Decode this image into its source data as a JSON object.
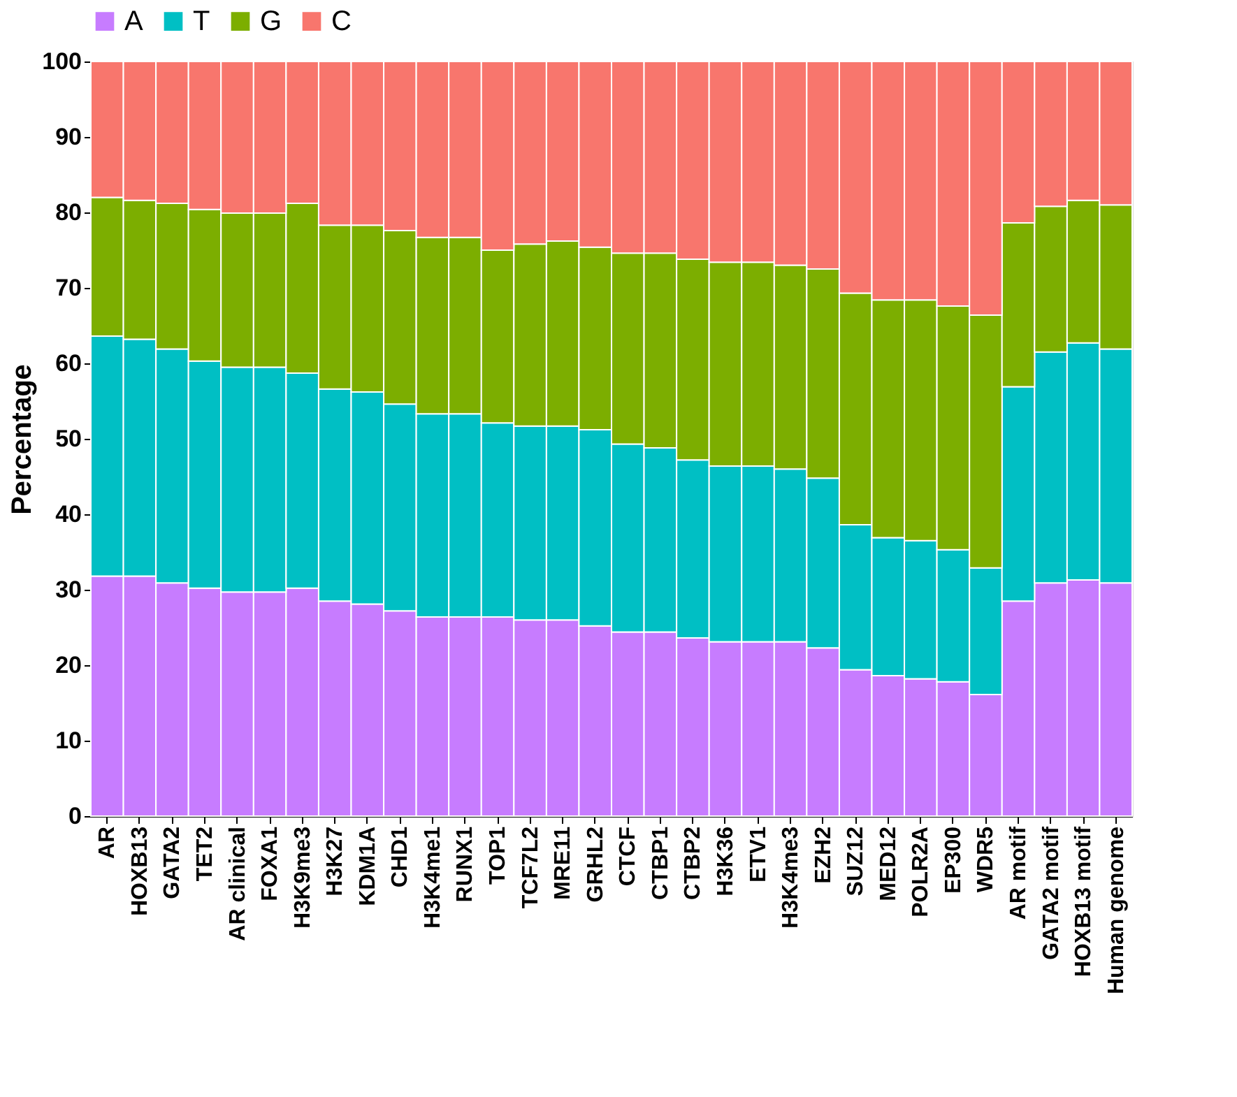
{
  "chart_data": {
    "type": "bar",
    "stacked": true,
    "ylabel": "Percentage",
    "ylim": [
      0,
      100
    ],
    "yticks": [
      0,
      10,
      20,
      30,
      40,
      50,
      60,
      70,
      80,
      90,
      100
    ],
    "legend": "top",
    "categories": [
      "AR",
      "HOXB13",
      "GATA2",
      "TET2",
      "AR clinical",
      "FOXA1",
      "H3K9me3",
      "H3K27",
      "KDM1A",
      "CHD1",
      "H3K4me1",
      "RUNX1",
      "TOP1",
      "TCF7L2",
      "MRE11",
      "GRHL2",
      "CTCF",
      "CTBP1",
      "CTBP2",
      "H3K36",
      "ETV1",
      "H3K4me3",
      "EZH2",
      "SUZ12",
      "MED12",
      "POLR2A",
      "EP300",
      "WDR5",
      "AR motif",
      "GATA2 motif",
      "HOXB13 motif",
      "Human genome"
    ],
    "series": [
      {
        "name": "A",
        "color": "#c77cff",
        "values": [
          31.8,
          31.8,
          30.9,
          30.2,
          29.7,
          29.7,
          30.2,
          28.5,
          28.1,
          27.2,
          26.4,
          26.4,
          26.4,
          26.0,
          26.0,
          25.2,
          24.4,
          24.4,
          23.6,
          23.1,
          23.1,
          23.1,
          22.3,
          19.4,
          18.6,
          18.2,
          17.8,
          16.1,
          28.5,
          30.9,
          31.3,
          30.9
        ]
      },
      {
        "name": "T",
        "color": "#00bfc4",
        "values": [
          31.8,
          31.4,
          31.0,
          30.1,
          29.8,
          29.8,
          28.5,
          28.1,
          28.1,
          27.4,
          26.9,
          26.9,
          25.7,
          25.7,
          25.7,
          26.0,
          24.9,
          24.4,
          23.6,
          23.3,
          23.3,
          22.9,
          22.5,
          19.2,
          18.3,
          18.3,
          17.5,
          16.8,
          28.4,
          30.6,
          31.4,
          31.0
        ]
      },
      {
        "name": "G",
        "color": "#7cae00",
        "values": [
          18.4,
          18.4,
          19.3,
          20.1,
          20.4,
          20.4,
          22.5,
          21.7,
          22.1,
          23.0,
          23.4,
          23.4,
          22.9,
          24.1,
          24.5,
          24.2,
          25.3,
          25.8,
          26.6,
          27.0,
          27.0,
          27.0,
          27.7,
          30.7,
          31.5,
          31.9,
          32.3,
          33.5,
          21.7,
          19.3,
          18.9,
          19.1
        ]
      },
      {
        "name": "C",
        "color": "#f8766d",
        "values": [
          18.0,
          18.4,
          18.8,
          19.6,
          20.1,
          20.1,
          18.8,
          21.7,
          21.7,
          22.4,
          23.3,
          23.3,
          25.0,
          24.2,
          23.8,
          24.6,
          25.4,
          25.4,
          26.2,
          26.6,
          26.6,
          27.0,
          27.5,
          30.7,
          31.6,
          31.6,
          32.4,
          33.6,
          21.4,
          19.2,
          18.4,
          19.0
        ]
      }
    ]
  }
}
